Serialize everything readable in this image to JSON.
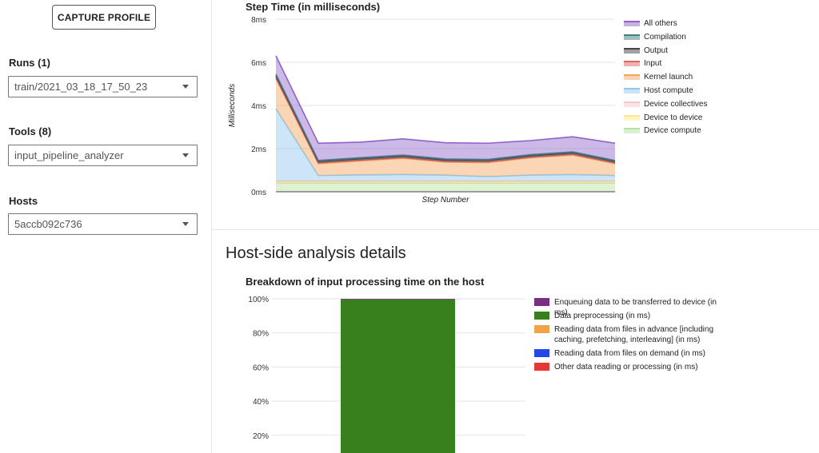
{
  "sidebar": {
    "capture_button": "CAPTURE PROFILE",
    "runs": {
      "label": "Runs (1)",
      "value": "train/2021_03_18_17_50_23"
    },
    "tools": {
      "label": "Tools (8)",
      "value": "input_pipeline_analyzer"
    },
    "hosts": {
      "label": "Hosts",
      "value": "5accb092c736"
    }
  },
  "host_section_title": "Host-side analysis details",
  "chart_data": [
    {
      "type": "area",
      "title": "Step Time (in milliseconds)",
      "xlabel": "Step Number",
      "ylabel": "Milliseconds",
      "ylim": [
        0,
        8
      ],
      "yticks": [
        "0ms",
        "2ms",
        "4ms",
        "6ms",
        "8ms"
      ],
      "x": [
        0,
        1,
        2,
        3,
        4,
        5,
        6,
        7,
        8
      ],
      "stacked": true,
      "grid": true,
      "legend_position": "right",
      "series": [
        {
          "name": "Device compute",
          "color": "#b7e1a1",
          "values": [
            0.4,
            0.4,
            0.4,
            0.4,
            0.4,
            0.4,
            0.4,
            0.4,
            0.4
          ]
        },
        {
          "name": "Device to device",
          "color": "#fde98a",
          "values": [
            0.05,
            0.05,
            0.05,
            0.05,
            0.05,
            0.05,
            0.05,
            0.05,
            0.05
          ]
        },
        {
          "name": "Device collectives",
          "color": "#f9c7c7",
          "values": [
            0.05,
            0.05,
            0.05,
            0.05,
            0.05,
            0.05,
            0.05,
            0.05,
            0.05
          ]
        },
        {
          "name": "Host compute",
          "color": "#8ec8ef",
          "values": [
            3.35,
            0.25,
            0.28,
            0.3,
            0.27,
            0.2,
            0.27,
            0.3,
            0.25
          ]
        },
        {
          "name": "Kernel launch",
          "color": "#f5a55c",
          "values": [
            1.4,
            0.55,
            0.65,
            0.75,
            0.6,
            0.65,
            0.8,
            0.9,
            0.55
          ]
        },
        {
          "name": "Input",
          "color": "#e06666",
          "values": [
            0.03,
            0.03,
            0.03,
            0.03,
            0.03,
            0.03,
            0.03,
            0.03,
            0.03
          ]
        },
        {
          "name": "Output",
          "color": "#444444",
          "values": [
            0.1,
            0.07,
            0.07,
            0.07,
            0.07,
            0.07,
            0.07,
            0.07,
            0.07
          ]
        },
        {
          "name": "Compilation",
          "color": "#3f7f7f",
          "values": [
            0.07,
            0.05,
            0.05,
            0.05,
            0.05,
            0.05,
            0.05,
            0.05,
            0.05
          ]
        },
        {
          "name": "All others",
          "color": "#8e63c9",
          "values": [
            0.85,
            0.8,
            0.72,
            0.75,
            0.75,
            0.75,
            0.65,
            0.7,
            0.8
          ]
        }
      ]
    },
    {
      "type": "bar",
      "title": "Breakdown of input processing time on the host",
      "stacked": true,
      "ylim": [
        0,
        100
      ],
      "yticks": [
        "20%",
        "40%",
        "60%",
        "80%",
        "100%"
      ],
      "legend_position": "right",
      "categories": [
        ""
      ],
      "series": [
        {
          "name": "Enqueuing data to be transferred to device (in ms)",
          "color": "#7b2d83",
          "values": [
            0.3
          ]
        },
        {
          "name": "Data preprocessing (in ms)",
          "color": "#38801d",
          "values": [
            99.7
          ]
        },
        {
          "name": "Reading data from files in advance [including caching, prefetching, interleaving] (in ms)",
          "color": "#f2a34a",
          "values": [
            0
          ]
        },
        {
          "name": "Reading data from files on demand (in ms)",
          "color": "#2448e8",
          "values": [
            0
          ]
        },
        {
          "name": "Other data reading or processing (in ms)",
          "color": "#e53935",
          "values": [
            0
          ]
        }
      ]
    }
  ]
}
